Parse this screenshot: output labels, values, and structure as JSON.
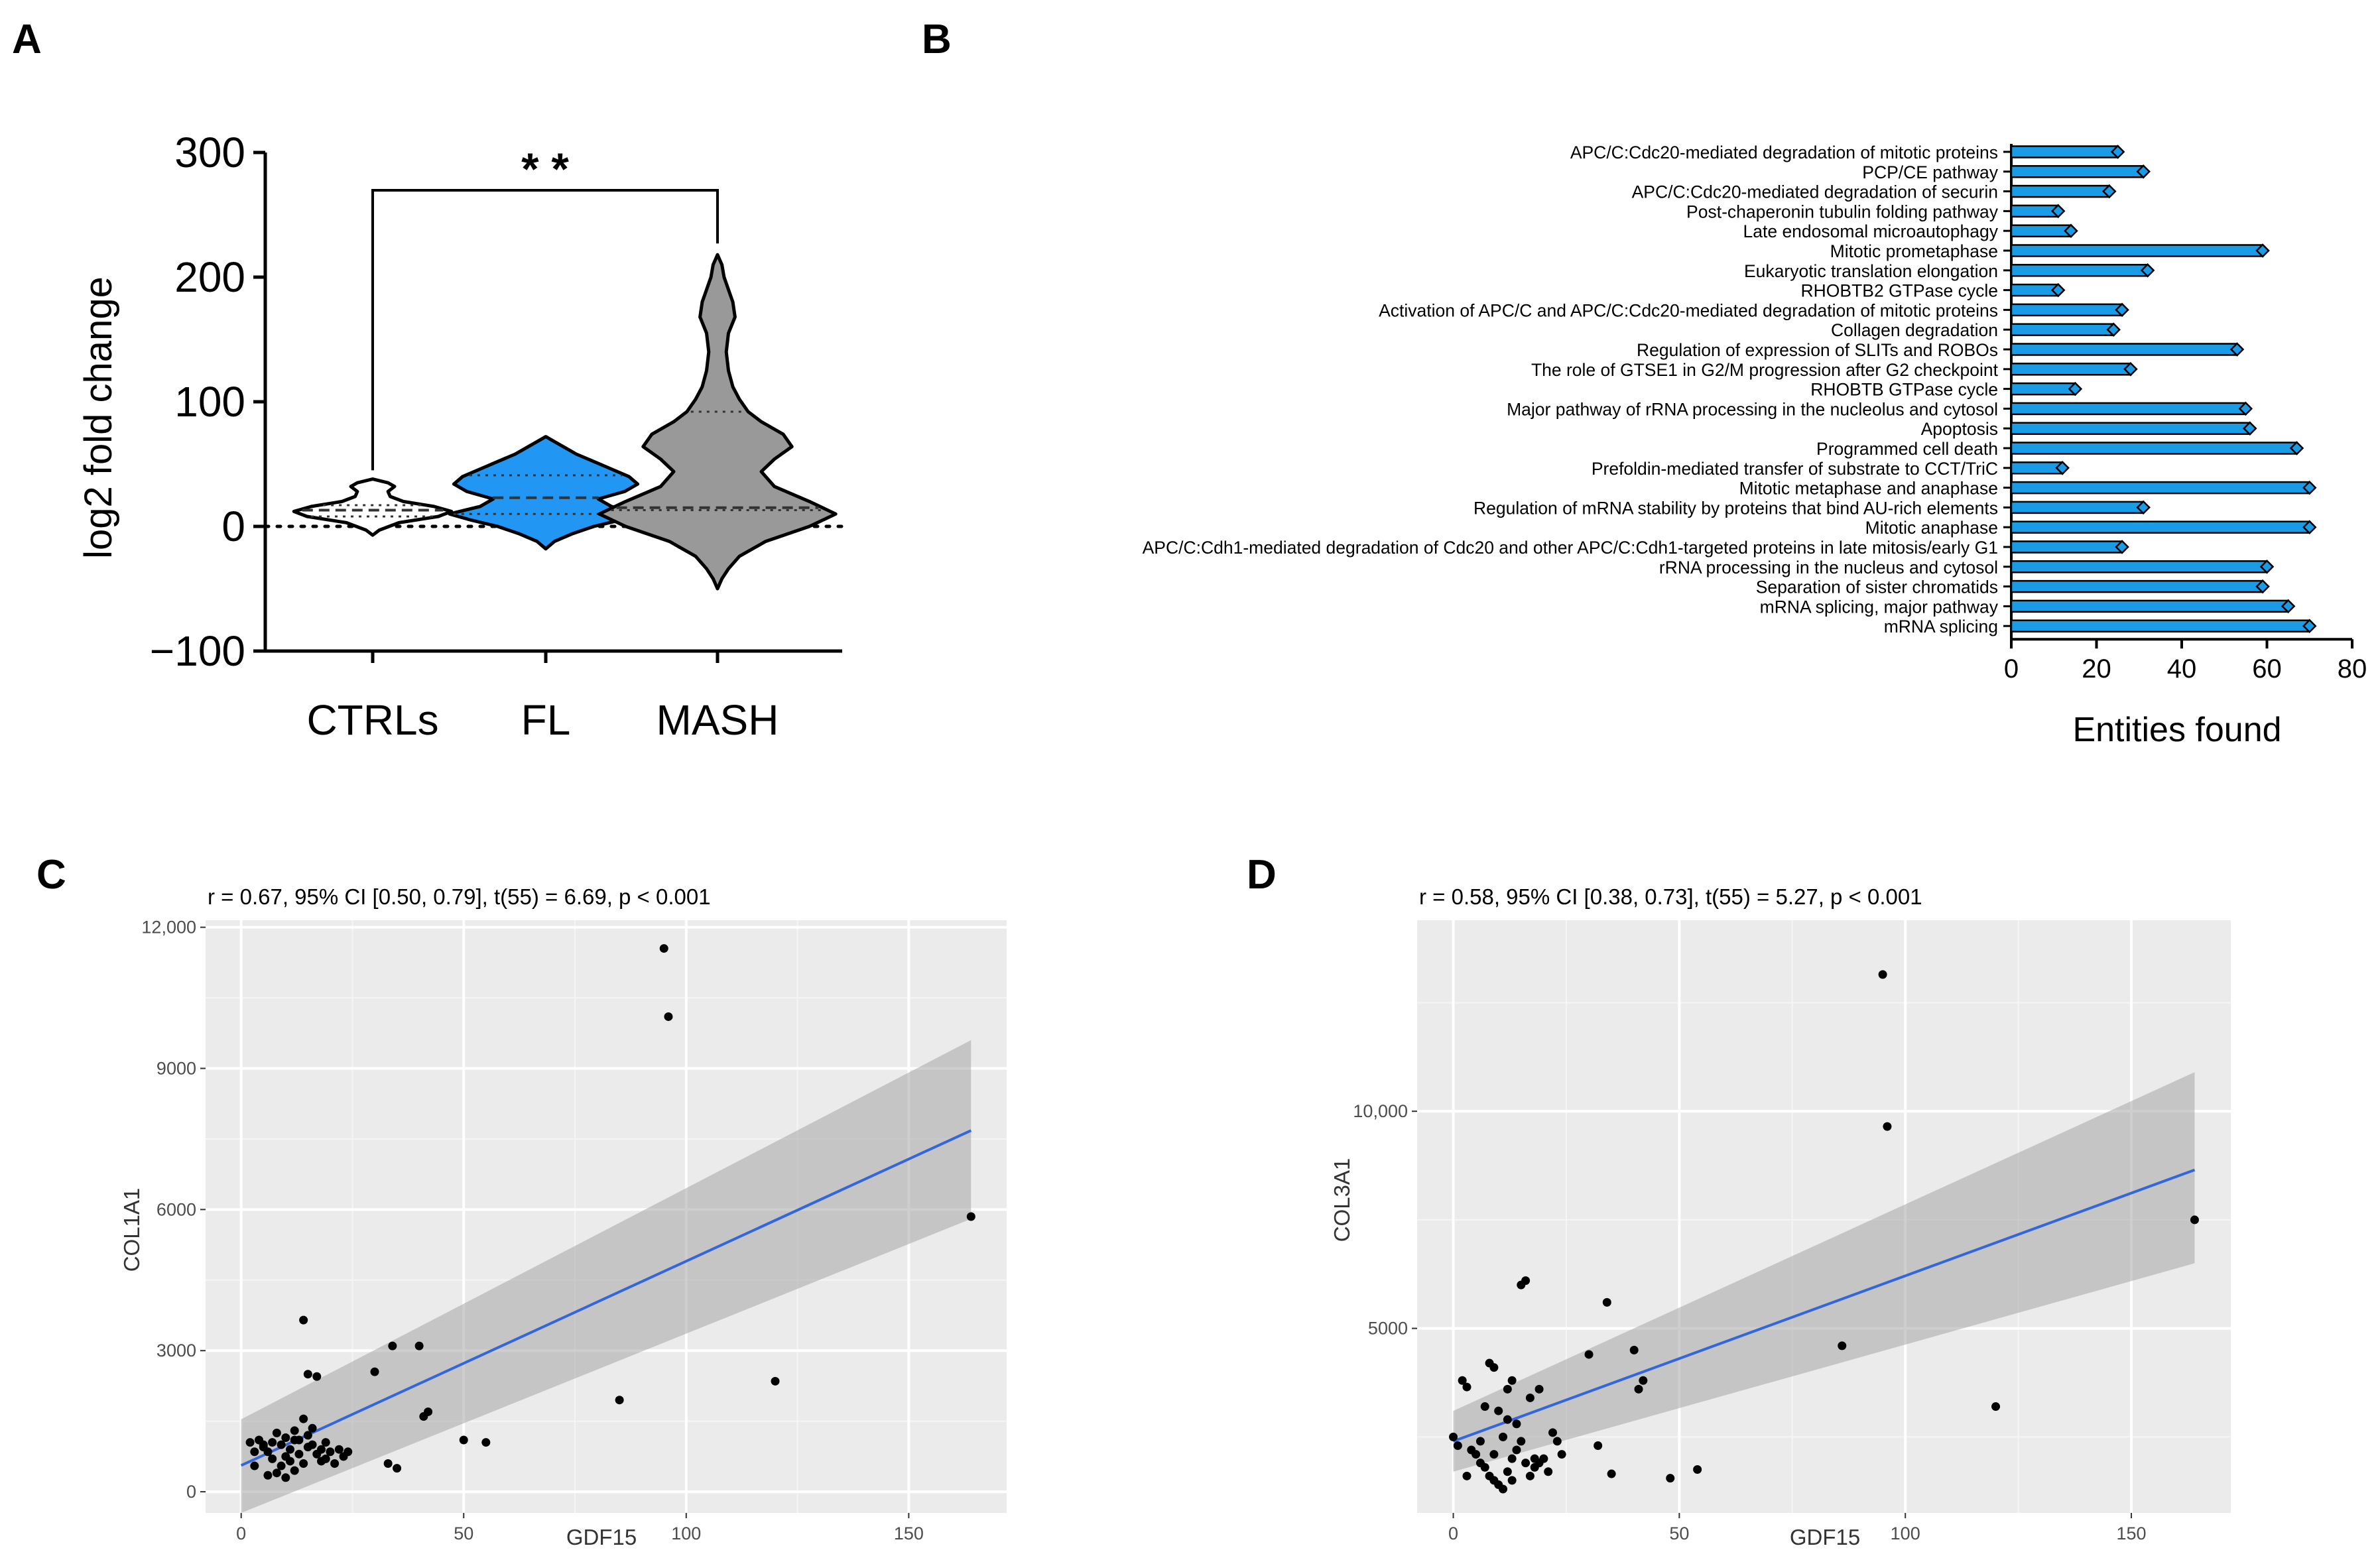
{
  "panels": {
    "A": {
      "letter": "A"
    },
    "B": {
      "letter": "B"
    },
    "C": {
      "letter": "C"
    },
    "D": {
      "letter": "D"
    }
  },
  "colors": {
    "fl": "#2196f3",
    "mash": "#999999",
    "bar": "#1a9be6",
    "fit": "#3366dd",
    "band": "#bdbdbd",
    "ggbg": "#ebebeb"
  },
  "chart_data": [
    {
      "panel": "A",
      "type": "violin",
      "categories": [
        "CTRLs",
        "FL",
        "MASH"
      ],
      "ylabel": "log2 fold change",
      "ylim": [
        -100,
        300
      ],
      "yticks": [
        -100,
        0,
        100,
        200,
        300
      ],
      "ytick_labels": [
        "−100",
        "0",
        "100",
        "200",
        "300"
      ],
      "reference_line": 0,
      "significance": {
        "from": "CTRLs",
        "to": "MASH",
        "label": "* *"
      },
      "violins": [
        {
          "name": "CTRLs",
          "color": "#ffffff",
          "min": -7,
          "max": 38,
          "q1": 8,
          "median": 13,
          "q3": 17,
          "profile": [
            [
              -7,
              0
            ],
            [
              -3,
              3
            ],
            [
              3,
              12
            ],
            [
              8,
              30
            ],
            [
              12,
              36
            ],
            [
              16,
              28
            ],
            [
              20,
              14
            ],
            [
              24,
              8
            ],
            [
              28,
              7
            ],
            [
              32,
              10
            ],
            [
              35,
              7
            ],
            [
              38,
              0
            ]
          ]
        },
        {
          "name": "FL",
          "color": "#2196f3",
          "min": -18,
          "max": 72,
          "q1": 10,
          "median": 23,
          "q3": 41,
          "profile": [
            [
              -18,
              0
            ],
            [
              -12,
              4
            ],
            [
              -6,
              12
            ],
            [
              0,
              22
            ],
            [
              5,
              34
            ],
            [
              10,
              44
            ],
            [
              16,
              30
            ],
            [
              22,
              24
            ],
            [
              28,
              36
            ],
            [
              34,
              42
            ],
            [
              40,
              38
            ],
            [
              46,
              30
            ],
            [
              52,
              22
            ],
            [
              58,
              14
            ],
            [
              64,
              8
            ],
            [
              68,
              4
            ],
            [
              72,
              0
            ]
          ]
        },
        {
          "name": "MASH",
          "color": "#999999",
          "min": -50,
          "max": 218,
          "q1": 13,
          "median": 15,
          "q3": 92,
          "profile": [
            [
              -50,
              0
            ],
            [
              -42,
              2
            ],
            [
              -34,
              5
            ],
            [
              -24,
              10
            ],
            [
              -12,
              22
            ],
            [
              0,
              42
            ],
            [
              10,
              54
            ],
            [
              20,
              42
            ],
            [
              32,
              26
            ],
            [
              44,
              20
            ],
            [
              54,
              26
            ],
            [
              64,
              34
            ],
            [
              74,
              30
            ],
            [
              84,
              20
            ],
            [
              92,
              14
            ],
            [
              102,
              10
            ],
            [
              112,
              7
            ],
            [
              125,
              5
            ],
            [
              140,
              4
            ],
            [
              155,
              5
            ],
            [
              168,
              8
            ],
            [
              180,
              7
            ],
            [
              190,
              5
            ],
            [
              200,
              3
            ],
            [
              210,
              2
            ],
            [
              218,
              0
            ]
          ]
        }
      ]
    },
    {
      "panel": "B",
      "type": "bar",
      "orientation": "horizontal",
      "xlabel": "Entities found",
      "xlim": [
        0,
        80
      ],
      "xticks": [
        0,
        20,
        40,
        60,
        80
      ],
      "categories": [
        "APC/C:Cdc20-mediated degradation of mitotic proteins",
        "PCP/CE pathway",
        "APC/C:Cdc20-mediated degradation of securin",
        "Post-chaperonin tubulin folding pathway",
        "Late endosomal microautophagy",
        "Mitotic prometaphase",
        "Eukaryotic translation elongation",
        "RHOBTB2 GTPase cycle",
        "Activation of APC/C and APC/C:Cdc20-mediated degradation of mitotic proteins",
        "Collagen degradation",
        "Regulation of expression of SLITs and ROBOs",
        "The role of GTSE1 in G2/M progression after G2 checkpoint",
        "RHOBTB GTPase cycle",
        "Major pathway of rRNA processing in the nucleolus and cytosol",
        "Apoptosis",
        "Programmed cell death",
        "Prefoldin-mediated transfer of substrate to CCT/TriC",
        "Mitotic metaphase and anaphase",
        "Regulation of mRNA stability by proteins that bind AU-rich elements",
        "Mitotic anaphase",
        "APC/C:Cdh1-mediated degradation of Cdc20 and other APC/C:Cdh1-targeted proteins in late mitosis/early G1",
        "rRNA processing in the nucleus and cytosol",
        "Separation of sister chromatids",
        "mRNA splicing, major pathway",
        "mRNA splicing"
      ],
      "values": [
        25,
        31,
        23,
        11,
        14,
        59,
        32,
        11,
        26,
        24,
        53,
        28,
        15,
        55,
        56,
        67,
        12,
        70,
        31,
        70,
        26,
        60,
        59,
        65,
        70
      ]
    },
    {
      "panel": "C",
      "type": "scatter",
      "title": "r = 0.67, 95% CI [0.50, 0.79], t(55) = 6.69, p < 0.001",
      "xlabel": "GDF15",
      "ylabel": "COL1A1",
      "xlim": [
        -8,
        172
      ],
      "ylim": [
        -450,
        12150
      ],
      "xticks": [
        0,
        50,
        100,
        150
      ],
      "xtick_labels": [
        "0",
        "50",
        "100",
        "150"
      ],
      "yticks": [
        0,
        3000,
        6000,
        9000,
        12000
      ],
      "ytick_labels": [
        "0",
        "3000",
        "6000",
        "9000",
        "12,000"
      ],
      "fit": {
        "x0": 0,
        "y0": 560,
        "x1": 164,
        "y1": 7680,
        "band_x0": [
          -450,
          1540
        ],
        "band_x1": [
          5800,
          9600
        ]
      },
      "points": [
        [
          95,
          11550
        ],
        [
          96,
          10100
        ],
        [
          164,
          5850
        ],
        [
          14,
          3650
        ],
        [
          15,
          2500
        ],
        [
          17,
          2450
        ],
        [
          30,
          2550
        ],
        [
          34,
          3100
        ],
        [
          40,
          3100
        ],
        [
          41,
          1600
        ],
        [
          42,
          1700
        ],
        [
          85,
          1950
        ],
        [
          120,
          2350
        ],
        [
          50,
          1100
        ],
        [
          55,
          1050
        ],
        [
          33,
          600
        ],
        [
          35,
          500
        ],
        [
          2,
          1050
        ],
        [
          3,
          550
        ],
        [
          5,
          950
        ],
        [
          6,
          850
        ],
        [
          7,
          700
        ],
        [
          8,
          1250
        ],
        [
          9,
          1000
        ],
        [
          10,
          1150
        ],
        [
          11,
          900
        ],
        [
          12,
          1300
        ],
        [
          13,
          1100
        ],
        [
          14,
          1550
        ],
        [
          15,
          950
        ],
        [
          16,
          1350
        ],
        [
          17,
          800
        ],
        [
          18,
          650
        ],
        [
          19,
          700
        ],
        [
          20,
          850
        ],
        [
          21,
          600
        ],
        [
          22,
          900
        ],
        [
          23,
          750
        ],
        [
          24,
          850
        ],
        [
          8,
          400
        ],
        [
          10,
          300
        ],
        [
          12,
          450
        ],
        [
          14,
          600
        ],
        [
          4,
          1100
        ],
        [
          6,
          350
        ],
        [
          9,
          550
        ],
        [
          11,
          650
        ],
        [
          13,
          800
        ],
        [
          16,
          1000
        ],
        [
          18,
          900
        ],
        [
          7,
          1050
        ],
        [
          15,
          1200
        ],
        [
          12,
          1100
        ],
        [
          3,
          850
        ],
        [
          5,
          1000
        ],
        [
          10,
          750
        ],
        [
          19,
          1050
        ]
      ]
    },
    {
      "panel": "D",
      "type": "scatter",
      "title": "r = 0.58, 95% CI [0.38, 0.73], t(55) = 5.27, p < 0.001",
      "xlabel": "GDF15",
      "ylabel": "COL3A1",
      "xlim": [
        -8,
        172
      ],
      "ylim": [
        750,
        14400
      ],
      "xticks": [
        0,
        50,
        100,
        150
      ],
      "xtick_labels": [
        "0",
        "50",
        "100",
        "150"
      ],
      "yticks": [
        5000,
        10000
      ],
      "ytick_labels": [
        "5000",
        "10,000"
      ],
      "fit": {
        "x0": 0,
        "y0": 2400,
        "x1": 164,
        "y1": 8650,
        "band_x0": [
          1700,
          3100
        ],
        "band_x1": [
          6500,
          10900
        ]
      },
      "points": [
        [
          95,
          13150
        ],
        [
          96,
          9650
        ],
        [
          164,
          7500
        ],
        [
          86,
          4600
        ],
        [
          120,
          3200
        ],
        [
          15,
          6000
        ],
        [
          16,
          6100
        ],
        [
          34,
          5600
        ],
        [
          30,
          4400
        ],
        [
          40,
          4500
        ],
        [
          42,
          3800
        ],
        [
          41,
          3600
        ],
        [
          35,
          1650
        ],
        [
          48,
          1550
        ],
        [
          54,
          1750
        ],
        [
          32,
          2300
        ],
        [
          24,
          2100
        ],
        [
          18,
          2000
        ],
        [
          2,
          3800
        ],
        [
          3,
          3650
        ],
        [
          8,
          4200
        ],
        [
          9,
          4100
        ],
        [
          12,
          3600
        ],
        [
          13,
          3800
        ],
        [
          17,
          3400
        ],
        [
          19,
          3600
        ],
        [
          7,
          3200
        ],
        [
          10,
          3100
        ],
        [
          12,
          2900
        ],
        [
          14,
          2800
        ],
        [
          11,
          2500
        ],
        [
          0,
          2500
        ],
        [
          1,
          2300
        ],
        [
          4,
          2200
        ],
        [
          5,
          2100
        ],
        [
          6,
          1900
        ],
        [
          7,
          1800
        ],
        [
          8,
          1600
        ],
        [
          9,
          1500
        ],
        [
          10,
          1400
        ],
        [
          11,
          1300
        ],
        [
          12,
          1700
        ],
        [
          13,
          2000
        ],
        [
          14,
          2200
        ],
        [
          15,
          2400
        ],
        [
          16,
          1900
        ],
        [
          17,
          1600
        ],
        [
          18,
          1800
        ],
        [
          20,
          2000
        ],
        [
          21,
          1700
        ],
        [
          22,
          2600
        ],
        [
          23,
          2400
        ],
        [
          3,
          1600
        ],
        [
          6,
          2400
        ],
        [
          9,
          2100
        ],
        [
          13,
          1500
        ],
        [
          19,
          1900
        ]
      ]
    }
  ]
}
